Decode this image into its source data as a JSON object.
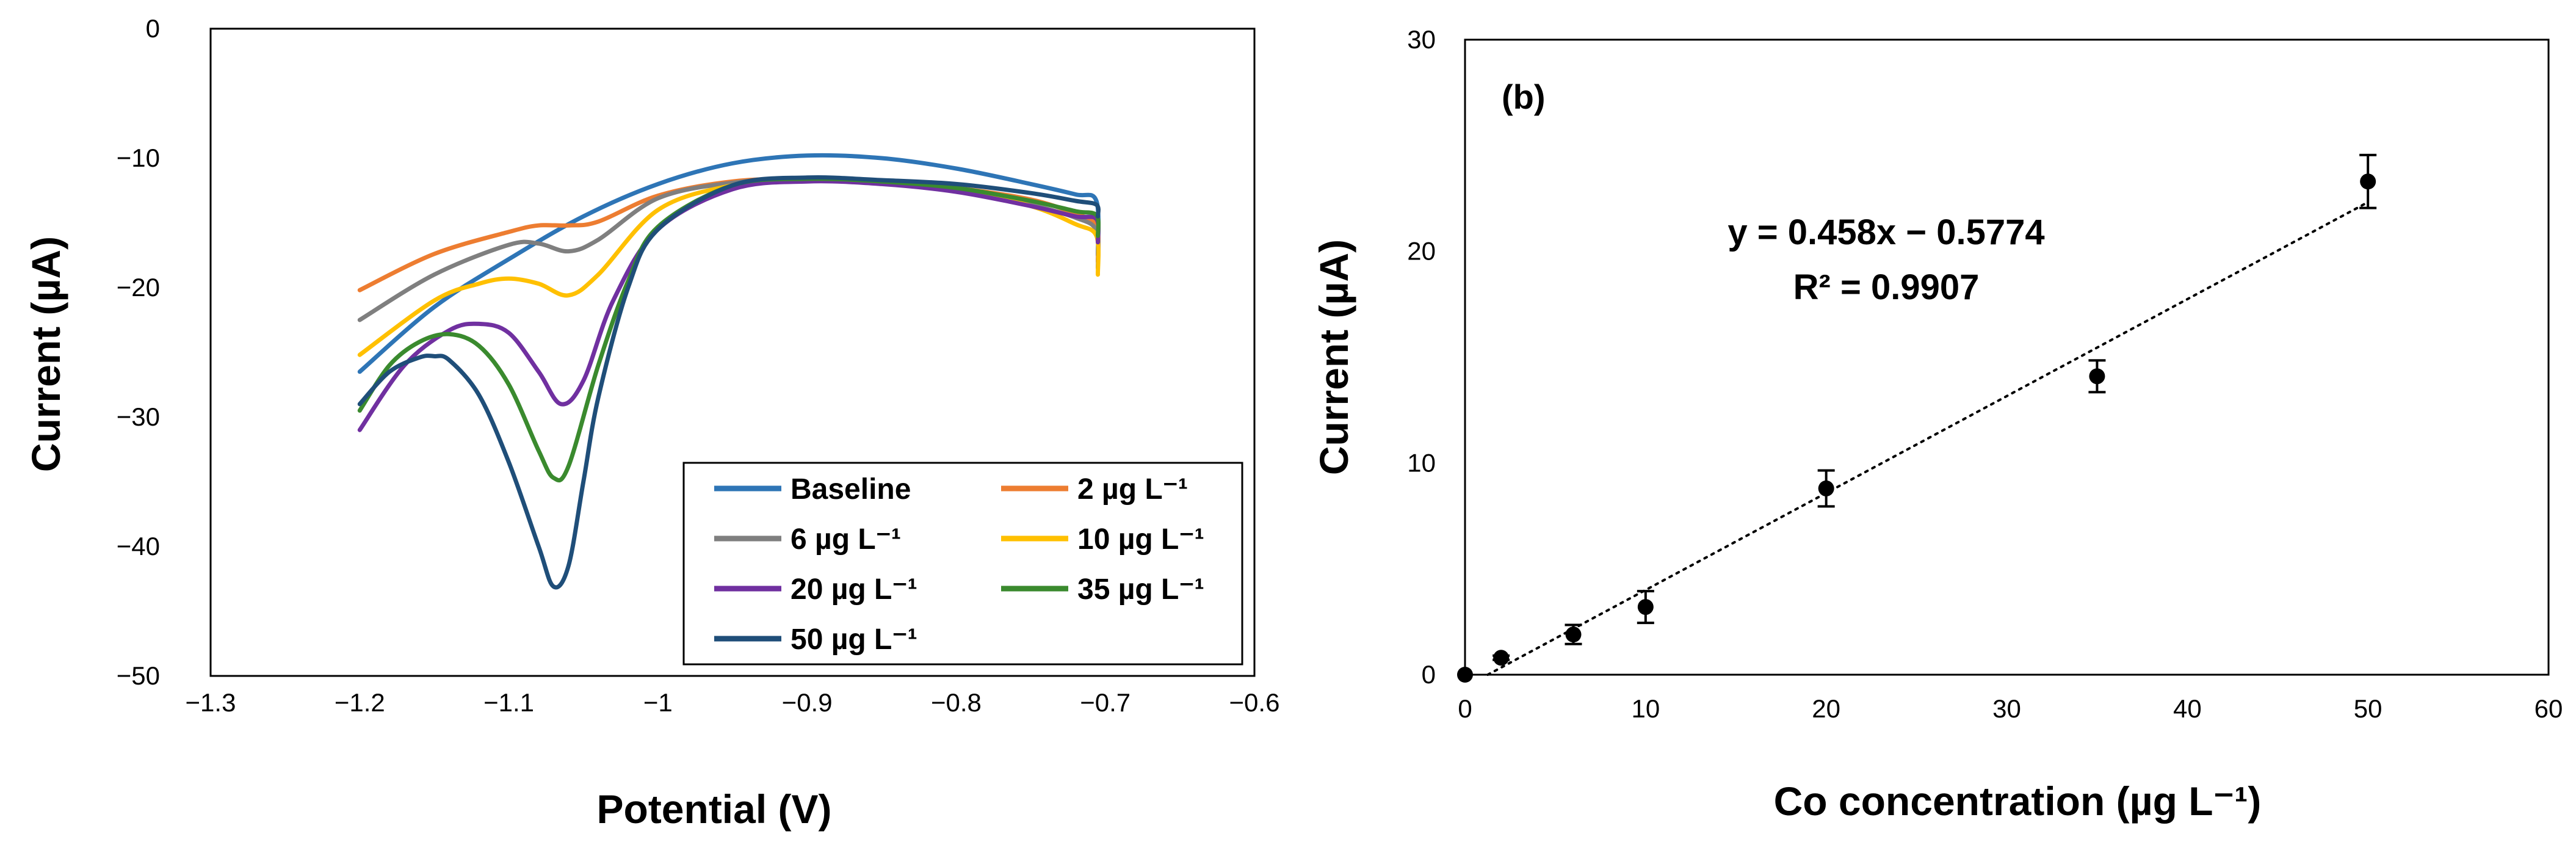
{
  "chart_data": [
    {
      "type": "line",
      "xlabel": "Potential (V)",
      "ylabel": "Current (µA)",
      "xlim": [
        -1.3,
        -0.6
      ],
      "ylim": [
        -50,
        0
      ],
      "x_ticks": [
        "-1.3",
        "-1.2",
        "-1.1",
        "-1",
        "-0.9",
        "-0.8",
        "-0.7",
        "-0.6"
      ],
      "y_ticks": [
        "0",
        "-10",
        "-20",
        "-30",
        "-40",
        "-50"
      ],
      "grid": false,
      "legend_position": "bottom-right",
      "series": [
        {
          "name": "Baseline",
          "color": "#2E75B6",
          "x": [
            -1.2,
            -1.15,
            -1.1,
            -1.05,
            -1.0,
            -0.95,
            -0.9,
            -0.85,
            -0.8,
            -0.75,
            -0.72,
            -0.706,
            -0.705
          ],
          "y": [
            -26.5,
            -21.5,
            -17.8,
            -14.5,
            -12.0,
            -10.4,
            -9.8,
            -10.0,
            -10.8,
            -12.0,
            -12.8,
            -13.3,
            -17.5
          ]
        },
        {
          "name": "2 µg L⁻¹",
          "color": "#ED7D31",
          "x": [
            -1.2,
            -1.15,
            -1.1,
            -1.08,
            -1.06,
            -1.04,
            -1.0,
            -0.95,
            -0.9,
            -0.85,
            -0.8,
            -0.75,
            -0.72,
            -0.706,
            -0.705
          ],
          "y": [
            -20.2,
            -17.4,
            -15.7,
            -15.2,
            -15.2,
            -14.9,
            -12.9,
            -11.8,
            -11.6,
            -11.8,
            -12.3,
            -13.2,
            -14.3,
            -15.2,
            -18.0
          ]
        },
        {
          "name": "6 µg L⁻¹",
          "color": "#7F7F7F",
          "x": [
            -1.2,
            -1.15,
            -1.1,
            -1.08,
            -1.06,
            -1.04,
            -1.0,
            -0.95,
            -0.9,
            -0.85,
            -0.8,
            -0.75,
            -0.72,
            -0.706,
            -0.705
          ],
          "y": [
            -22.5,
            -19.0,
            -16.7,
            -16.6,
            -17.2,
            -16.3,
            -13.1,
            -11.9,
            -11.6,
            -11.8,
            -12.4,
            -13.6,
            -14.6,
            -15.6,
            -18.5
          ]
        },
        {
          "name": "10 µg L⁻¹",
          "color": "#FFC000",
          "x": [
            -1.2,
            -1.15,
            -1.12,
            -1.1,
            -1.08,
            -1.06,
            -1.04,
            -1.0,
            -0.95,
            -0.9,
            -0.85,
            -0.8,
            -0.75,
            -0.72,
            -0.706,
            -0.705
          ],
          "y": [
            -25.2,
            -21.0,
            -19.7,
            -19.3,
            -19.7,
            -20.6,
            -19.0,
            -14.0,
            -12.1,
            -11.6,
            -11.8,
            -12.4,
            -13.7,
            -15.1,
            -16.0,
            -19.0
          ]
        },
        {
          "name": "20 µg L⁻¹",
          "color": "#7030A0",
          "x": [
            -1.2,
            -1.17,
            -1.14,
            -1.12,
            -1.1,
            -1.08,
            -1.065,
            -1.05,
            -1.03,
            -1.0,
            -0.95,
            -0.9,
            -0.85,
            -0.8,
            -0.75,
            -0.72,
            -0.706,
            -0.705
          ],
          "y": [
            -31.0,
            -26.0,
            -23.3,
            -22.8,
            -23.5,
            -26.5,
            -29.0,
            -27.2,
            -21.0,
            -15.5,
            -12.4,
            -11.8,
            -12.0,
            -12.6,
            -13.7,
            -14.5,
            -14.7,
            -16.5
          ]
        },
        {
          "name": "35 µg L⁻¹",
          "color": "#3A8A2E",
          "x": [
            -1.2,
            -1.18,
            -1.16,
            -1.14,
            -1.12,
            -1.1,
            -1.08,
            -1.07,
            -1.06,
            -1.04,
            -1.02,
            -1.0,
            -0.95,
            -0.9,
            -0.85,
            -0.8,
            -0.75,
            -0.72,
            -0.706,
            -0.705
          ],
          "y": [
            -29.5,
            -26.0,
            -24.2,
            -23.6,
            -24.5,
            -27.5,
            -32.6,
            -34.7,
            -33.8,
            -26.0,
            -19.5,
            -15.3,
            -12.1,
            -11.6,
            -11.8,
            -12.3,
            -13.3,
            -14.1,
            -14.4,
            -16.0
          ]
        },
        {
          "name": "50 µg L⁻¹",
          "color": "#1F4E79",
          "x": [
            -1.2,
            -1.18,
            -1.16,
            -1.15,
            -1.14,
            -1.12,
            -1.1,
            -1.08,
            -1.07,
            -1.06,
            -1.05,
            -1.04,
            -1.02,
            -1.0,
            -0.95,
            -0.9,
            -0.85,
            -0.8,
            -0.75,
            -0.72,
            -0.706,
            -0.705
          ],
          "y": [
            -29.0,
            -26.5,
            -25.4,
            -25.3,
            -25.6,
            -28.3,
            -33.5,
            -40.0,
            -43.1,
            -41.5,
            -35.0,
            -28.5,
            -20.0,
            -15.5,
            -12.1,
            -11.5,
            -11.7,
            -12.0,
            -12.7,
            -13.3,
            -13.6,
            -14.5
          ]
        }
      ]
    },
    {
      "type": "scatter",
      "panel_label": "(b)",
      "xlabel": "Co concentration (µg L⁻¹)",
      "ylabel": "Current (µA)",
      "xlim": [
        0,
        60
      ],
      "ylim": [
        0,
        30
      ],
      "x_ticks": [
        "0",
        "10",
        "20",
        "30",
        "40",
        "50",
        "60"
      ],
      "y_ticks": [
        "0",
        "10",
        "20",
        "30"
      ],
      "grid": false,
      "color": "#000000",
      "x": [
        0,
        2,
        6,
        10,
        20,
        35,
        50
      ],
      "y": [
        0,
        0.8,
        1.9,
        3.2,
        8.8,
        14.1,
        23.3
      ],
      "error": [
        0,
        0.1,
        0.45,
        0.75,
        0.85,
        0.75,
        1.25
      ],
      "trendline": {
        "slope": 0.458,
        "intercept": -0.5774,
        "x_range": [
          0,
          50
        ],
        "style": "dotted"
      },
      "annotations": {
        "equation": "y = 0.458x − 0.5774",
        "r_squared": "R² = 0.9907"
      }
    }
  ]
}
